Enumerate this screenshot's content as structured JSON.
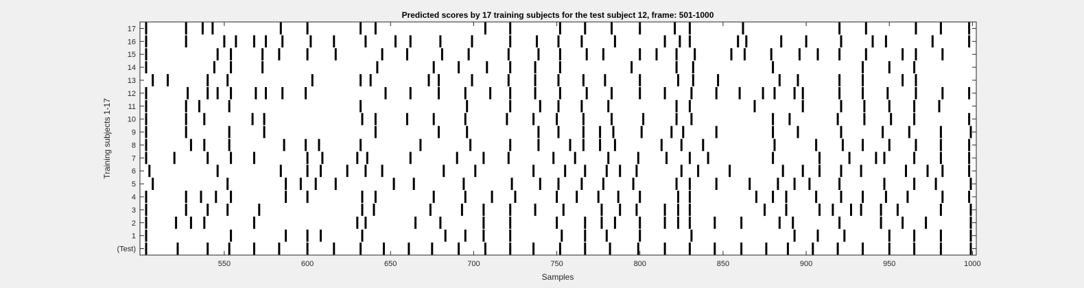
{
  "chart_data": {
    "type": "raster",
    "title": "Predicted scores by 17 training subjects for the test subject 12, frame: 501-1000",
    "xlabel": "Samples",
    "ylabel": "Training subjects 1-17",
    "xlim": [
      501,
      1000
    ],
    "xticks": [
      550,
      600,
      650,
      700,
      750,
      800,
      850,
      900,
      950,
      1000
    ],
    "row_labels": [
      "(Test)",
      "1",
      "2",
      "3",
      "4",
      "5",
      "6",
      "7",
      "8",
      "9",
      "10",
      "11",
      "12",
      "13",
      "14",
      "15",
      "16",
      "17"
    ],
    "grid": false,
    "colors": {
      "background": "#f0f0f0",
      "axes_bg": "#ffffff",
      "marks": "#000000",
      "text": "#262626"
    },
    "rows": [
      {
        "label": "(Test)",
        "events": [
          503,
          522,
          540,
          553,
          568,
          583,
          600,
          616,
          632,
          646,
          661,
          675,
          691,
          707,
          722,
          736,
          752,
          767,
          782,
          799,
          815,
          830,
          845,
          861,
          876,
          889,
          904,
          919,
          934,
          950,
          965,
          981,
          999
        ]
      },
      {
        "label": "1",
        "events": [
          503,
          554,
          587,
          600,
          608,
          633,
          683,
          695,
          706,
          722,
          753,
          767,
          780,
          800,
          831,
          893,
          907,
          923,
          950,
          965,
          981,
          999
        ]
      },
      {
        "label": "2",
        "events": [
          503,
          521,
          530,
          538,
          568,
          630,
          635,
          665,
          680,
          706,
          722,
          750,
          767,
          777,
          785,
          800,
          815,
          823,
          830,
          845,
          861,
          884,
          892,
          920,
          945,
          958,
          972,
          999
        ]
      },
      {
        "label": "3",
        "events": [
          503,
          527,
          540,
          552,
          571,
          633,
          640,
          674,
          693,
          706,
          722,
          737,
          754,
          777,
          788,
          798,
          815,
          823,
          830,
          875,
          888,
          908,
          916,
          927,
          933,
          945,
          955,
          981,
          999
        ]
      },
      {
        "label": "4",
        "events": [
          503,
          527,
          536,
          545,
          554,
          587,
          600,
          633,
          641,
          676,
          695,
          711,
          725,
          750,
          762,
          775,
          787,
          800,
          823,
          830,
          870,
          880,
          888,
          906,
          921,
          934,
          948,
          961,
          982,
          998
        ]
      },
      {
        "label": "5",
        "events": [
          507,
          552,
          587,
          596,
          605,
          617,
          652,
          664,
          694,
          723,
          740,
          751,
          765,
          778,
          796,
          822,
          830,
          846,
          866,
          883,
          893,
          902,
          920,
          947,
          965,
          978,
          999
        ]
      },
      {
        "label": "6",
        "events": [
          505,
          546,
          584,
          600,
          608,
          624,
          635,
          645,
          682,
          701,
          736,
          755,
          767,
          780,
          788,
          798,
          825,
          835,
          854,
          886,
          898,
          908,
          921,
          933,
          960,
          973,
          982,
          998
        ]
      },
      {
        "label": "7",
        "events": [
          503,
          520,
          540,
          554,
          568,
          600,
          609,
          630,
          636,
          662,
          690,
          706,
          721,
          748,
          761,
          781,
          799,
          816,
          830,
          841,
          880,
          908,
          926,
          942,
          947,
          965,
          981,
          998
        ]
      },
      {
        "label": "8",
        "events": [
          503,
          530,
          538,
          553,
          586,
          599,
          607,
          632,
          668,
          698,
          722,
          739,
          758,
          766,
          776,
          785,
          813,
          825,
          838,
          881,
          906,
          922,
          934,
          950,
          966,
          981,
          998
        ]
      },
      {
        "label": "9",
        "events": [
          503,
          527,
          553,
          574,
          641,
          679,
          696,
          739,
          751,
          766,
          776,
          784,
          801,
          819,
          826,
          846,
          880,
          895,
          921,
          946,
          962,
          981,
          999
        ]
      },
      {
        "label": "10",
        "events": [
          503,
          527,
          538,
          567,
          574,
          633,
          641,
          660,
          676,
          695,
          720,
          736,
          750,
          766,
          783,
          802,
          822,
          831,
          880,
          890,
          919,
          935,
          951,
          965,
          998
        ]
      },
      {
        "label": "11",
        "events": [
          503,
          527,
          535,
          553,
          632,
          696,
          722,
          740,
          751,
          765,
          781,
          822,
          830,
          869,
          898,
          921,
          935,
          950,
          965,
          980
        ]
      },
      {
        "label": "12",
        "events": [
          503,
          528,
          540,
          546,
          554,
          569,
          575,
          585,
          599,
          647,
          662,
          679,
          695,
          710,
          722,
          737,
          752,
          768,
          783,
          800,
          815,
          831,
          846,
          860,
          874,
          881,
          893,
          898,
          920,
          934,
          949,
          966,
          982,
          998
        ]
      },
      {
        "label": "13",
        "events": [
          507,
          516,
          540,
          552,
          603,
          632,
          638,
          673,
          679,
          699,
          721,
          737,
          751,
          766,
          779,
          800,
          823,
          832,
          847,
          884,
          895,
          920,
          934,
          958,
          966
        ]
      },
      {
        "label": "14",
        "events": [
          503,
          544,
          554,
          573,
          642,
          676,
          691,
          708,
          722,
          737,
          752,
          795,
          822,
          832,
          880,
          934,
          950,
          965
        ]
      },
      {
        "label": "15",
        "events": [
          503,
          546,
          554,
          573,
          583,
          600,
          617,
          645,
          660,
          681,
          697,
          721,
          739,
          752,
          768,
          778,
          800,
          810,
          822,
          833,
          855,
          863,
          879,
          896,
          907,
          920,
          936,
          958,
          966,
          982
        ]
      },
      {
        "label": "16",
        "events": [
          503,
          527,
          550,
          557,
          568,
          575,
          585,
          602,
          616,
          635,
          653,
          662,
          680,
          699,
          722,
          738,
          751,
          765,
          785,
          815,
          824,
          830,
          859,
          864,
          885,
          900,
          921,
          940,
          948,
          976,
          998
        ]
      },
      {
        "label": "17",
        "events": [
          503,
          527,
          537,
          543,
          584,
          600,
          632,
          641,
          707,
          722,
          752,
          767,
          783,
          800,
          821,
          830,
          862,
          920,
          936,
          966,
          981,
          998
        ]
      }
    ]
  }
}
